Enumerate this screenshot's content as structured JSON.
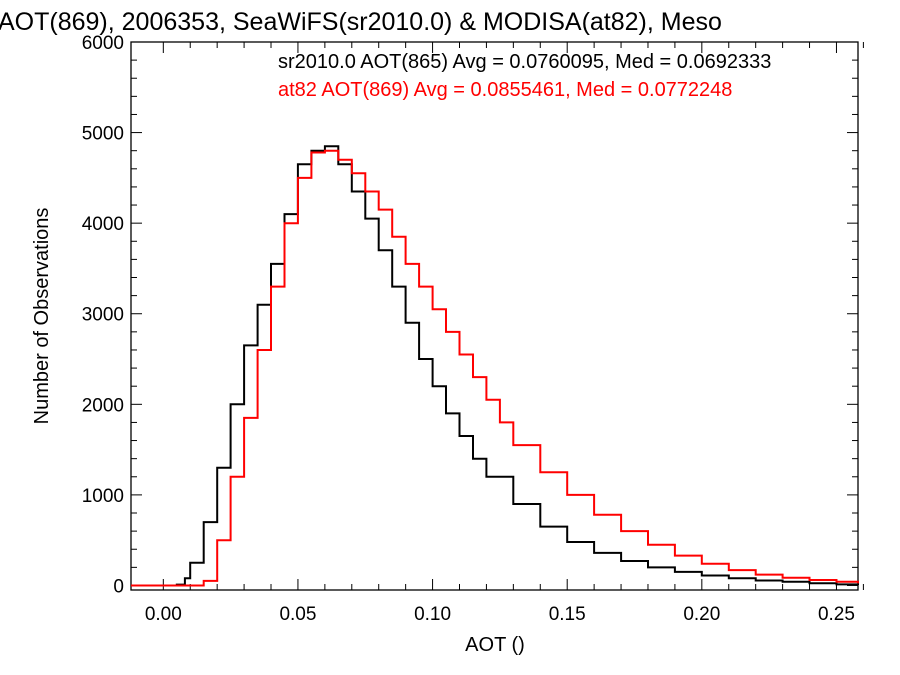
{
  "chart_data": {
    "type": "line",
    "title": "AOT(869), 2006353, SeaWiFS(sr2010.0) & MODISA(at82), Meso",
    "xlabel": "AOT ()",
    "ylabel": "Number of Observations",
    "xlim": [
      -0.012,
      0.258
    ],
    "ylim": [
      -50,
      6000
    ],
    "xticks": [
      0.0,
      0.05,
      0.1,
      0.15,
      0.2,
      0.25
    ],
    "xtick_labels": [
      "0.00",
      "0.05",
      "0.10",
      "0.15",
      "0.20",
      "0.25"
    ],
    "yticks": [
      0,
      1000,
      2000,
      3000,
      4000,
      5000,
      6000
    ],
    "ytick_labels": [
      "0",
      "1000",
      "2000",
      "3000",
      "4000",
      "5000",
      "6000"
    ],
    "grid": false,
    "legend_position": "top-right",
    "series": [
      {
        "name": "sr2010.0 AOT(865) Avg = 0.0760095, Med = 0.0692333",
        "color": "#000000",
        "x": [
          -0.012,
          0.0,
          0.005,
          0.008,
          0.01,
          0.015,
          0.02,
          0.025,
          0.03,
          0.035,
          0.04,
          0.045,
          0.05,
          0.055,
          0.06,
          0.065,
          0.07,
          0.075,
          0.08,
          0.085,
          0.09,
          0.095,
          0.1,
          0.105,
          0.11,
          0.115,
          0.12,
          0.13,
          0.14,
          0.15,
          0.16,
          0.17,
          0.18,
          0.19,
          0.2,
          0.21,
          0.22,
          0.23,
          0.24,
          0.25,
          0.258
        ],
        "values": [
          0,
          0,
          10,
          80,
          250,
          700,
          1300,
          2000,
          2650,
          3100,
          3550,
          4100,
          4650,
          4800,
          4850,
          4650,
          4350,
          4050,
          3700,
          3300,
          2900,
          2500,
          2200,
          1900,
          1650,
          1400,
          1200,
          900,
          650,
          480,
          360,
          270,
          200,
          150,
          110,
          80,
          55,
          40,
          25,
          12,
          5
        ]
      },
      {
        "name": "at82 AOT(869) Avg = 0.0855461, Med = 0.0772248",
        "color": "#ff0000",
        "x": [
          -0.012,
          0.0,
          0.01,
          0.015,
          0.02,
          0.025,
          0.03,
          0.035,
          0.04,
          0.045,
          0.05,
          0.055,
          0.06,
          0.065,
          0.07,
          0.075,
          0.08,
          0.085,
          0.09,
          0.095,
          0.1,
          0.105,
          0.11,
          0.115,
          0.12,
          0.125,
          0.13,
          0.14,
          0.15,
          0.16,
          0.17,
          0.18,
          0.19,
          0.2,
          0.21,
          0.22,
          0.23,
          0.24,
          0.25,
          0.258
        ],
        "values": [
          0,
          0,
          0,
          50,
          500,
          1200,
          1850,
          2600,
          3300,
          4000,
          4500,
          4780,
          4800,
          4700,
          4550,
          4350,
          4150,
          3850,
          3550,
          3300,
          3050,
          2800,
          2550,
          2300,
          2050,
          1800,
          1550,
          1250,
          1000,
          780,
          600,
          450,
          330,
          240,
          170,
          120,
          85,
          60,
          40,
          25
        ]
      }
    ]
  }
}
